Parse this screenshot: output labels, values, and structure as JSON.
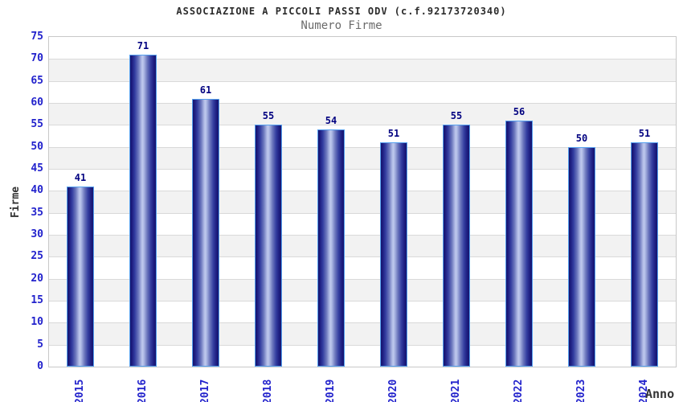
{
  "chart": {
    "title": "ASSOCIAZIONE A PICCOLI PASSI ODV (c.f.92173720340)",
    "subtitle": "Numero Firme"
  },
  "chart_data": {
    "type": "bar",
    "title": "ASSOCIAZIONE A PICCOLI PASSI ODV (c.f.92173720340)",
    "subtitle": "Numero Firme",
    "categories": [
      "2015",
      "2016",
      "2017",
      "2018",
      "2019",
      "2020",
      "2021",
      "2022",
      "2023",
      "2024"
    ],
    "values": [
      41,
      71,
      61,
      55,
      54,
      51,
      55,
      56,
      50,
      51
    ],
    "xlabel": "Anno",
    "ylabel": "Firme",
    "ylim": [
      0,
      75
    ],
    "ytick_step": 5,
    "yticks": [
      0,
      5,
      10,
      15,
      20,
      25,
      30,
      35,
      40,
      45,
      50,
      55,
      60,
      65,
      70,
      75
    ],
    "grid": true,
    "legend": "none",
    "colors": {
      "bar_dark": "#15156e",
      "bar_highlight": "#c0caee",
      "bar_border": "#55a0ef",
      "tick_text": "#2222cc",
      "value_text": "#000080",
      "axis_label_text": "#333333",
      "title_text": "#2b2b2b",
      "subtitle_text": "#6b6b6b",
      "band_gray": "#f2f2f2",
      "gridline": "#d9d9d9",
      "plot_border": "#c8c8c8",
      "background": "#ffffff"
    }
  }
}
